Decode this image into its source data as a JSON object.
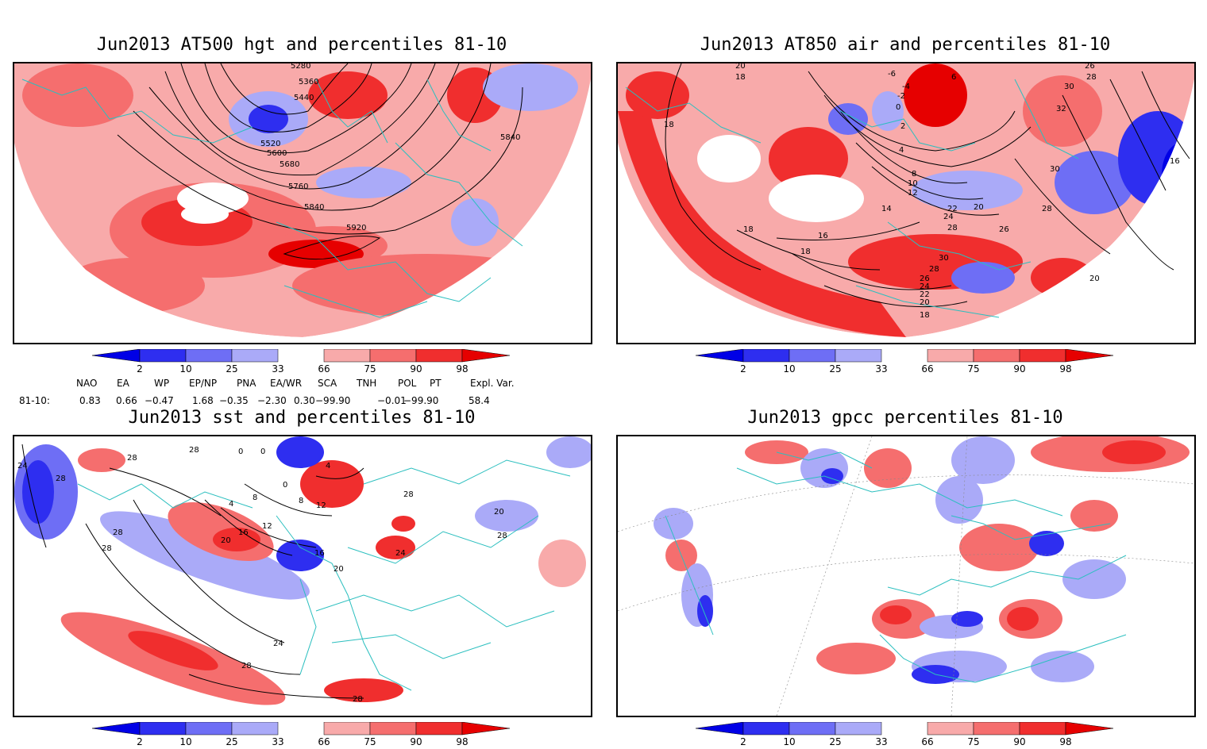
{
  "panels": [
    {
      "title": "Jun2013 AT500 hgt and percentiles 81-10",
      "contour_labels": [
        "5280",
        "5360",
        "5440",
        "5520",
        "5600",
        "5680",
        "5760",
        "5840",
        "5840",
        "5920"
      ]
    },
    {
      "title": "Jun2013 AT850 air and percentiles 81-10",
      "contour_labels": [
        "20",
        "18",
        "18",
        "-6",
        "-4",
        "-2",
        "0",
        "2",
        "4",
        "6",
        "8",
        "10",
        "12",
        "14",
        "16",
        "18",
        "20",
        "22",
        "24",
        "26",
        "28",
        "28",
        "30",
        "28",
        "26",
        "24",
        "22",
        "20",
        "18",
        "26",
        "28",
        "30",
        "32",
        "30",
        "18",
        "16",
        "20"
      ]
    },
    {
      "title": "Jun2013 sst and percentiles 81-10",
      "contour_labels": [
        "24",
        "28",
        "28",
        "28",
        "28",
        "28",
        "4",
        "8",
        "12",
        "16",
        "20",
        "20",
        "16",
        "12",
        "8",
        "4",
        "0",
        "0",
        "0",
        "24",
        "24",
        "28",
        "28",
        "20",
        "28",
        "28"
      ]
    },
    {
      "title": "Jun2013 gpcc percentiles 81-10",
      "contour_labels": []
    }
  ],
  "colorbar": {
    "ticks": [
      "2",
      "10",
      "25",
      "33",
      "66",
      "75",
      "90",
      "98"
    ],
    "colors": [
      "#0000e6",
      "#2e2ef0",
      "#6e6ef5",
      "#aaaaf8",
      "#ffffff",
      "#f8aaaa",
      "#f56e6e",
      "#f02e2e",
      "#e60000"
    ]
  },
  "indices": {
    "headers": [
      "NAO",
      "EA",
      "WP",
      "EP/NP",
      "PNA",
      "EA/WR",
      "SCA",
      "TNH",
      "POL",
      "PT",
      "Expl. Var."
    ],
    "row_label": "81-10:",
    "values": [
      "0.83",
      "0.66",
      "−0.47",
      "1.68",
      "−0.35",
      "−2.30",
      "0.30",
      "−99.90",
      "−0.01",
      "−99.90",
      "58.4"
    ]
  }
}
